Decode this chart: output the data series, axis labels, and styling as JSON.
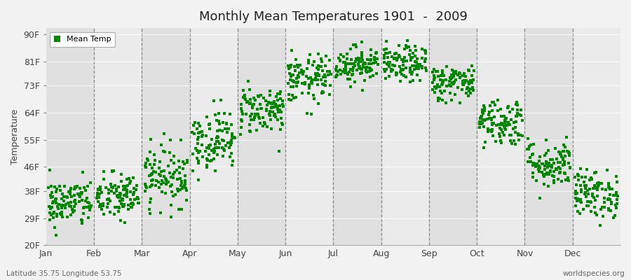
{
  "title": "Monthly Mean Temperatures 1901  -  2009",
  "ylabel": "Temperature",
  "xlabel_labels": [
    "Jan",
    "Feb",
    "Mar",
    "Apr",
    "May",
    "Jun",
    "Jul",
    "Aug",
    "Sep",
    "Oct",
    "Nov",
    "Dec"
  ],
  "yticks": [
    20,
    29,
    38,
    46,
    55,
    64,
    73,
    81,
    90
  ],
  "ytick_labels": [
    "20F",
    "29F",
    "38F",
    "46F",
    "55F",
    "64F",
    "73F",
    "81F",
    "90F"
  ],
  "ylim": [
    20,
    92
  ],
  "dot_color": "#008800",
  "dot_size": 6,
  "bg_color": "#F2F2F2",
  "band_color_odd": "#EBEBEB",
  "band_color_even": "#E0E0E0",
  "footnote_left": "Latitude 35.75 Longitude 53.75",
  "footnote_right": "worldspecies.org",
  "legend_label": "Mean Temp",
  "seed": 42,
  "n_years": 109,
  "monthly_means": [
    34,
    36,
    43,
    55,
    65,
    75,
    80,
    80,
    74,
    61,
    47,
    37
  ],
  "monthly_stds": [
    4,
    4,
    5,
    5,
    4,
    4,
    3,
    3,
    3,
    4,
    4,
    4
  ]
}
